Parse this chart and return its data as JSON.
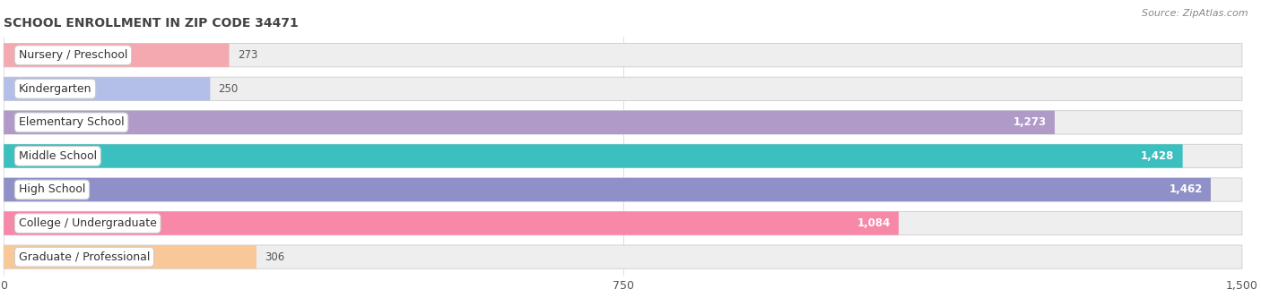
{
  "title": "SCHOOL ENROLLMENT IN ZIP CODE 34471",
  "source": "Source: ZipAtlas.com",
  "categories": [
    "Nursery / Preschool",
    "Kindergarten",
    "Elementary School",
    "Middle School",
    "High School",
    "College / Undergraduate",
    "Graduate / Professional"
  ],
  "values": [
    273,
    250,
    1273,
    1428,
    1462,
    1084,
    306
  ],
  "bar_colors": [
    "#f4a8b0",
    "#b3bfe8",
    "#b09ac8",
    "#3bbfbf",
    "#9090c8",
    "#f888a8",
    "#f8c898"
  ],
  "bar_bg_color": "#eeeeee",
  "bar_border_color": "#cccccc",
  "xlim_max": 1500,
  "xticks": [
    0,
    750,
    1500
  ],
  "value_color_inside": "#ffffff",
  "value_color_outside": "#555555",
  "inside_threshold": 350,
  "title_fontsize": 10,
  "source_fontsize": 8,
  "tick_fontsize": 9,
  "cat_fontsize": 9,
  "val_fontsize": 8.5
}
